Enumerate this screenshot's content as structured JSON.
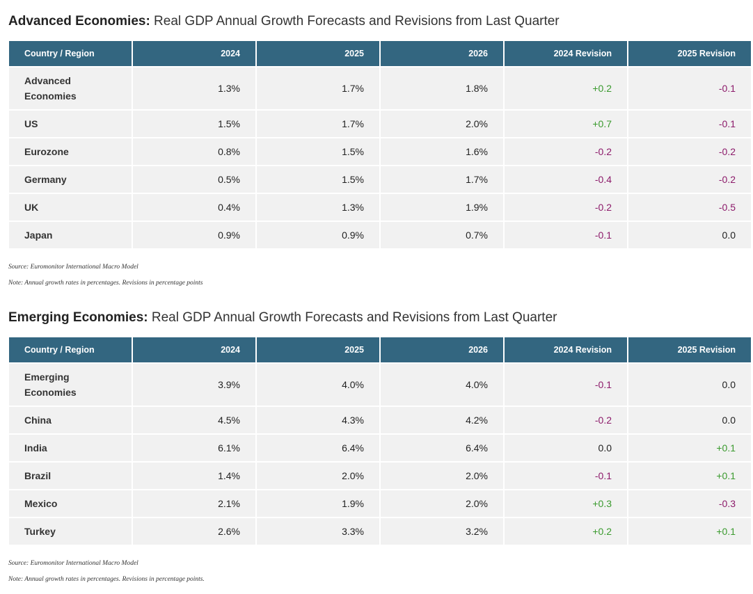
{
  "advanced": {
    "title_bold": "Advanced Economies:",
    "title_rest": " Real GDP Annual Growth Forecasts and Revisions from Last Quarter",
    "headers": [
      "Country / Region",
      "2024",
      "2025",
      "2026",
      "2024 Revision",
      "2025 Revision"
    ],
    "rows": [
      {
        "name": "Advanced Economies",
        "v2024": "1.3%",
        "v2025": "1.7%",
        "v2026": "1.8%",
        "r2024": "+0.2",
        "r2025": "-0.1"
      },
      {
        "name": "US",
        "v2024": "1.5%",
        "v2025": "1.7%",
        "v2026": "2.0%",
        "r2024": "+0.7",
        "r2025": "-0.1"
      },
      {
        "name": "Eurozone",
        "v2024": "0.8%",
        "v2025": "1.5%",
        "v2026": "1.6%",
        "r2024": "-0.2",
        "r2025": "-0.2"
      },
      {
        "name": "Germany",
        "v2024": "0.5%",
        "v2025": "1.5%",
        "v2026": "1.7%",
        "r2024": "-0.4",
        "r2025": "-0.2"
      },
      {
        "name": "UK",
        "v2024": "0.4%",
        "v2025": "1.3%",
        "v2026": "1.9%",
        "r2024": "-0.2",
        "r2025": "-0.5"
      },
      {
        "name": "Japan",
        "v2024": "0.9%",
        "v2025": "0.9%",
        "v2026": "0.7%",
        "r2024": "-0.1",
        "r2025": "0.0"
      }
    ],
    "source": "Source: Euromonitor International Macro Model",
    "note": "Note: Annual growth rates in percentages. Revisions in percentage points"
  },
  "emerging": {
    "title_bold": "Emerging Economies:",
    "title_rest": " Real GDP Annual Growth Forecasts and Revisions from Last Quarter",
    "headers": [
      "Country / Region",
      "2024",
      "2025",
      "2026",
      "2024 Revision",
      "2025 Revision"
    ],
    "rows": [
      {
        "name": "Emerging Economies",
        "v2024": "3.9%",
        "v2025": "4.0%",
        "v2026": "4.0%",
        "r2024": "-0.1",
        "r2025": "0.0"
      },
      {
        "name": "China",
        "v2024": "4.5%",
        "v2025": "4.3%",
        "v2026": "4.2%",
        "r2024": "-0.2",
        "r2025": "0.0"
      },
      {
        "name": "India",
        "v2024": "6.1%",
        "v2025": "6.4%",
        "v2026": "6.4%",
        "r2024": "0.0",
        "r2025": "+0.1"
      },
      {
        "name": "Brazil",
        "v2024": "1.4%",
        "v2025": "2.0%",
        "v2026": "2.0%",
        "r2024": "-0.1",
        "r2025": "+0.1"
      },
      {
        "name": "Mexico",
        "v2024": "2.1%",
        "v2025": "1.9%",
        "v2026": "2.0%",
        "r2024": "+0.3",
        "r2025": "-0.3"
      },
      {
        "name": "Turkey",
        "v2024": "2.6%",
        "v2025": "3.3%",
        "v2026": "3.2%",
        "r2024": "+0.2",
        "r2025": "+0.1"
      }
    ],
    "source": "Source: Euromonitor International Macro Model",
    "note": "Note: Annual growth rates in percentages. Revisions in percentage points."
  },
  "colors": {
    "header_bg": "#336680",
    "positive": "#3a9a2e",
    "negative": "#8c1a6a",
    "row_bg": "#f1f1f1"
  }
}
